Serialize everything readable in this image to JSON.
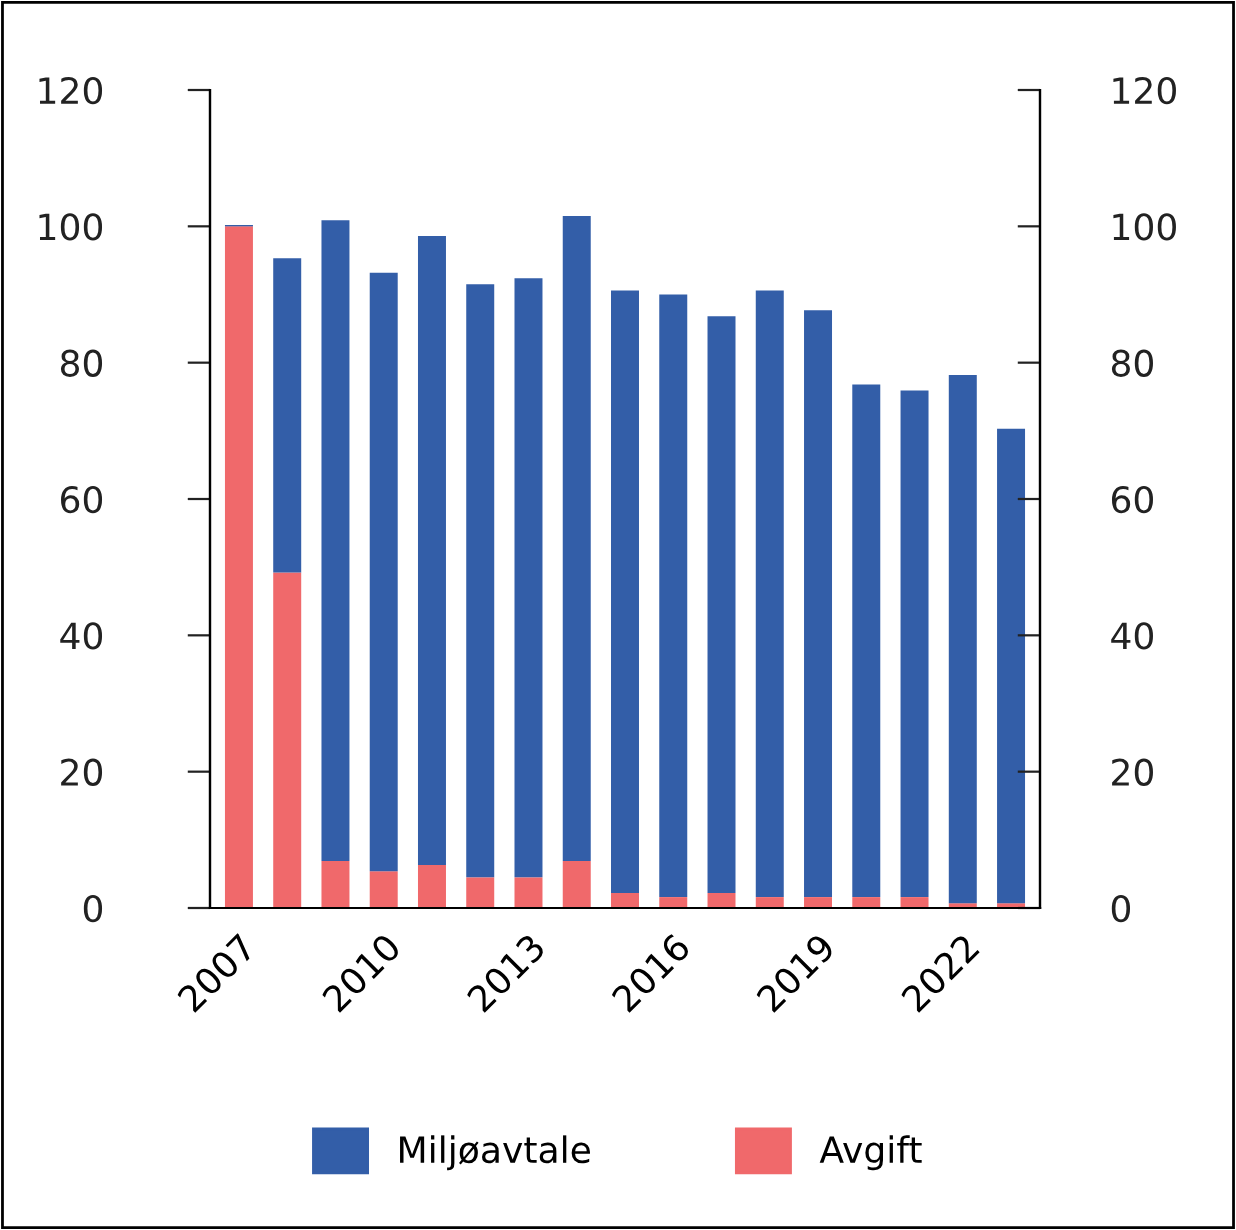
{
  "chart_data": {
    "type": "bar",
    "stacked": true,
    "categories": [
      "2007",
      null,
      null,
      "2010",
      null,
      null,
      "2013",
      null,
      null,
      "2016",
      null,
      null,
      "2019",
      null,
      null,
      "2022",
      null
    ],
    "series": [
      {
        "name": "Avgift",
        "color": "#f0696b",
        "values": [
          100,
          49.2,
          6.9,
          5.4,
          6.3,
          4.5,
          4.5,
          6.9,
          2.2,
          1.6,
          2.2,
          1.6,
          1.6,
          1.6,
          1.6,
          0.7,
          0.7
        ]
      },
      {
        "name": "Miljøavtale",
        "color": "#335ea8",
        "values": [
          0.2,
          46.1,
          94.0,
          87.8,
          92.3,
          87.0,
          87.9,
          94.6,
          88.4,
          88.4,
          84.6,
          89.0,
          86.1,
          75.2,
          74.3,
          77.5,
          69.6
        ]
      }
    ],
    "ylim": [
      0,
      120
    ],
    "yticks": [
      0,
      20,
      40,
      60,
      80,
      100,
      120
    ],
    "y2lim": [
      0,
      120
    ],
    "y2ticks": [
      0,
      20,
      40,
      60,
      80,
      100,
      120
    ],
    "grid": false,
    "legend": "bottom"
  }
}
